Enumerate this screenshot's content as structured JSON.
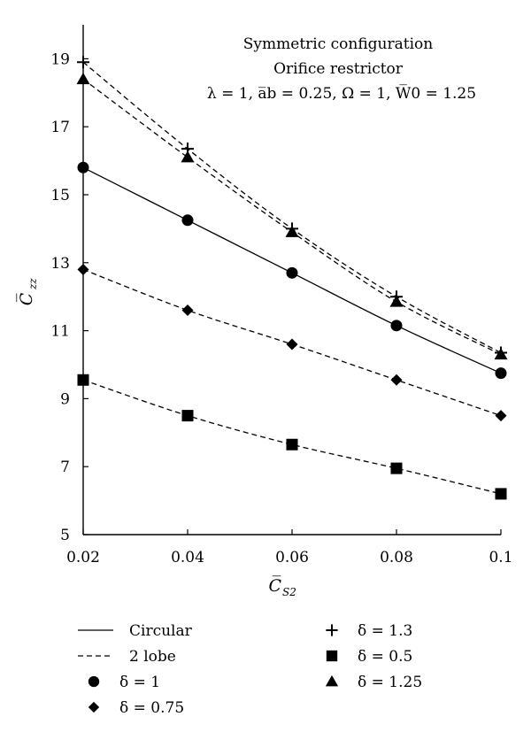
{
  "chart_data": {
    "type": "line",
    "annotations": [
      "Symmetric configuration",
      "Orifice restrictor",
      "λ = 1, a̅b = 0.25, Ω = 1, W̅0 = 1.25"
    ],
    "xlabel": {
      "base": "C̅",
      "sub": "S2"
    },
    "ylabel": {
      "base": "C̅",
      "sub": "zz"
    },
    "xlim": [
      0.02,
      0.1
    ],
    "ylim": [
      5,
      20
    ],
    "xticks": [
      "0.02",
      "0.04",
      "0.06",
      "0.08",
      "0.1"
    ],
    "yticks": [
      "5",
      "7",
      "9",
      "11",
      "13",
      "15",
      "17",
      "19"
    ],
    "x": [
      0.02,
      0.04,
      0.06,
      0.08,
      0.1
    ],
    "series": [
      {
        "name": "δ = 1.3",
        "line": "dashed",
        "marker": "plus",
        "values": [
          18.9,
          16.35,
          14.0,
          12.0,
          10.35
        ]
      },
      {
        "name": "δ = 1.25",
        "line": "dashed",
        "marker": "triangle",
        "values": [
          18.4,
          16.1,
          13.9,
          11.85,
          10.3
        ]
      },
      {
        "name": "δ = 1",
        "line": "solid",
        "marker": "circle",
        "values": [
          15.8,
          14.25,
          12.7,
          11.15,
          9.75
        ]
      },
      {
        "name": "δ = 0.75",
        "line": "dashed",
        "marker": "diamond",
        "values": [
          12.8,
          11.6,
          10.6,
          9.55,
          8.5
        ]
      },
      {
        "name": "δ = 0.5",
        "line": "dashed",
        "marker": "square",
        "values": [
          9.55,
          8.5,
          7.65,
          6.95,
          6.2
        ]
      }
    ],
    "legend": {
      "position": "bottom",
      "items": [
        {
          "key": "circular",
          "symbol": "solid-line",
          "label": "Circular"
        },
        {
          "key": "plus",
          "symbol": "plus",
          "label": "δ = 1.3"
        },
        {
          "key": "two-lobe",
          "symbol": "dashed-line",
          "label": "2 lobe"
        },
        {
          "key": "square",
          "symbol": "square",
          "label": "δ = 0.5"
        },
        {
          "key": "circle",
          "symbol": "circle",
          "label": "δ = 1"
        },
        {
          "key": "triangle",
          "symbol": "triangle",
          "label": "δ = 1.25"
        },
        {
          "key": "diamond",
          "symbol": "diamond",
          "label": "δ = 0.75"
        }
      ]
    },
    "grid": false,
    "colors": {
      "ink": "#000000",
      "background": "#ffffff"
    }
  }
}
